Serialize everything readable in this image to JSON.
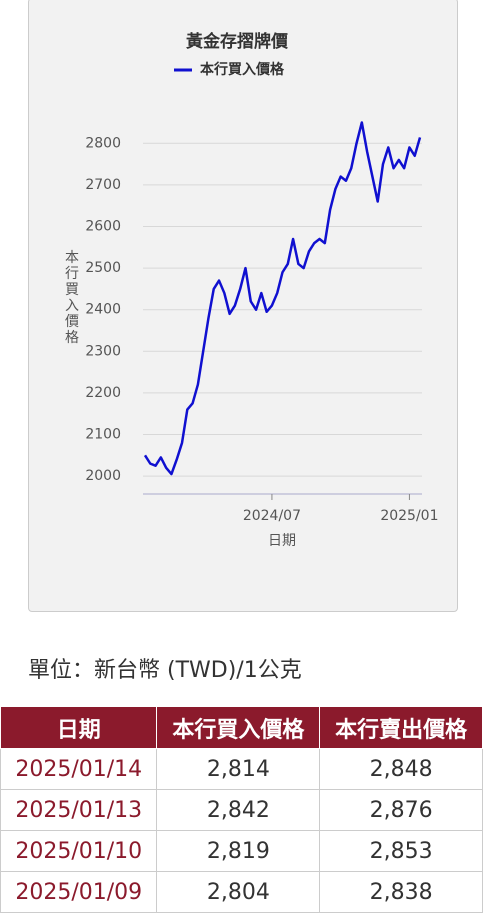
{
  "chart_data": {
    "type": "line",
    "title": "黃金存摺牌價",
    "ylabel": "本行買入價格",
    "xlabel": "日期",
    "categories": [
      null,
      null,
      null,
      null,
      null,
      null,
      null,
      null,
      null,
      null,
      null,
      null,
      null,
      null,
      null,
      null,
      null,
      null,
      null,
      null,
      null,
      null,
      null,
      null,
      "2024/07",
      null,
      null,
      null,
      null,
      null,
      null,
      null,
      null,
      null,
      null,
      null,
      null,
      null,
      null,
      null,
      null,
      null,
      null,
      null,
      null,
      null,
      null,
      null,
      null,
      null,
      "2025/01",
      null,
      null
    ],
    "series": [
      {
        "name": "本行買入價格",
        "color": "#1010d0",
        "values": [
          2050,
          2030,
          2025,
          2045,
          2020,
          2005,
          2040,
          2080,
          2160,
          2175,
          2220,
          2300,
          2380,
          2450,
          2470,
          2440,
          2390,
          2410,
          2450,
          2500,
          2420,
          2400,
          2440,
          2395,
          2410,
          2440,
          2490,
          2510,
          2570,
          2510,
          2500,
          2540,
          2560,
          2570,
          2560,
          2640,
          2690,
          2720,
          2710,
          2740,
          2800,
          2850,
          2780,
          2720,
          2660,
          2750,
          2790,
          2740,
          2760,
          2740,
          2790,
          2770,
          2814
        ]
      }
    ],
    "ylim": [
      1957,
      2880
    ],
    "yticks": [
      2000,
      2100,
      2200,
      2300,
      2400,
      2500,
      2600,
      2700,
      2800
    ],
    "grid": true
  },
  "unit": "單位：新台幣 (TWD)/1公克",
  "table": {
    "header": [
      "日期",
      "本行買入價格",
      "本行賣出價格"
    ],
    "rows": [
      [
        "2025/01/14",
        "2,814",
        "2,848"
      ],
      [
        "2025/01/13",
        "2,842",
        "2,876"
      ],
      [
        "2025/01/10",
        "2,819",
        "2,853"
      ],
      [
        "2025/01/09",
        "2,804",
        "2,838"
      ]
    ]
  }
}
